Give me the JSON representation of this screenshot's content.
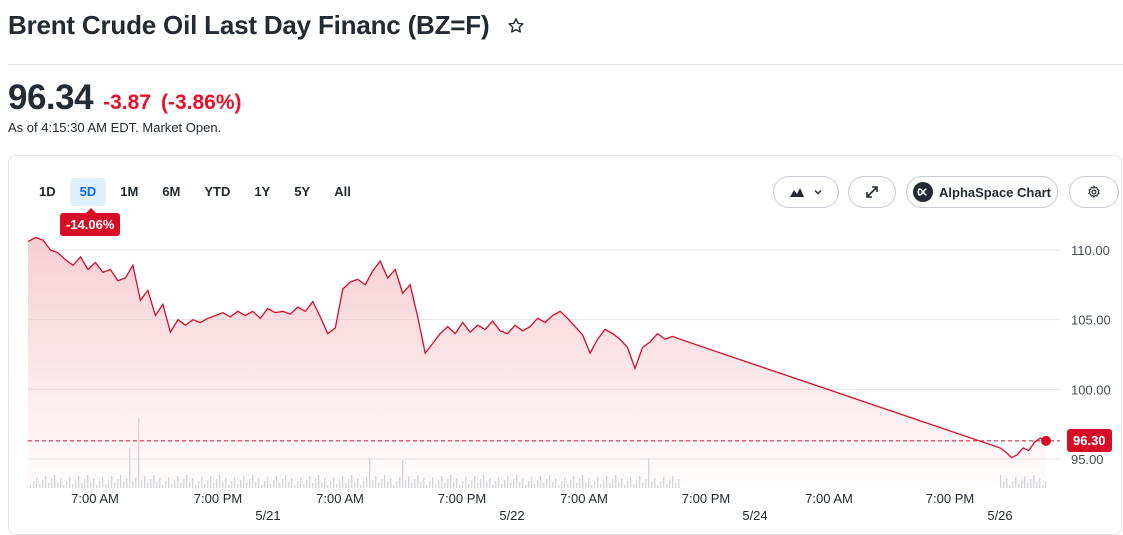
{
  "header": {
    "title": "Brent Crude Oil Last Day Financ (BZ=F)",
    "price": "96.34",
    "change": "-3.87",
    "change_pct": "(-3.86%)",
    "as_of": "As of 4:15:30 AM EDT. Market Open."
  },
  "toolbar": {
    "ranges": [
      "1D",
      "5D",
      "1M",
      "6M",
      "YTD",
      "1Y",
      "5Y",
      "All"
    ],
    "active_range": "5D",
    "period_change": "-14.06%",
    "alpha_label": "AlphaSpace Chart"
  },
  "colors": {
    "line": "#d80c26",
    "fill_top": "#f6c9ce",
    "negative": "#eb0f29",
    "active_range_bg": "#e0f0ff",
    "active_range_text": "#0f69ff"
  },
  "chart_data": {
    "type": "area",
    "ylim": [
      94.0,
      111.0
    ],
    "y_ticks": [
      "110.00",
      "105.00",
      "100.00",
      "95.00"
    ],
    "x_tick_labels": [
      "7:00 AM",
      "7:00 PM",
      "7:00 AM",
      "7:00 PM",
      "7:00 AM",
      "7:00 PM",
      "7:00 AM",
      "7:00 PM"
    ],
    "date_labels": [
      "5/21",
      "5/22",
      "5/24",
      "5/26"
    ],
    "previous_close": 96.3,
    "last_price_label": "96.30",
    "series": [
      {
        "values": [
          110.6,
          110.9,
          110.7,
          110.0,
          109.8,
          109.3,
          108.9,
          109.5,
          108.6,
          109.1,
          108.4,
          108.6,
          107.8,
          108.0,
          108.9,
          106.4,
          107.1,
          105.3,
          106.1,
          104.1,
          105.0,
          104.6,
          105.0,
          104.8,
          105.1,
          105.3,
          105.5,
          105.2,
          105.6,
          105.3,
          105.6,
          105.1,
          105.8,
          105.5,
          105.6,
          105.4,
          105.9,
          105.6,
          106.3,
          105.2,
          104.0,
          104.4,
          107.2,
          107.7,
          107.9,
          107.5,
          108.5,
          109.2,
          108.0,
          108.6,
          106.9,
          107.5,
          105.2,
          102.6,
          103.3,
          104.0,
          104.5,
          104.0,
          104.8,
          104.1,
          104.6,
          104.3,
          104.9,
          104.2,
          104.0,
          104.6,
          104.2,
          104.5,
          105.1,
          104.8,
          105.3,
          105.6,
          105.1,
          104.5,
          103.9,
          102.6,
          103.6,
          104.3,
          104.0,
          103.6,
          103.0,
          101.5,
          103.0,
          103.4,
          104.0,
          103.6,
          103.8,
          103.6,
          95.8,
          95.5,
          95.1,
          95.3,
          95.8,
          95.6,
          96.2,
          96.5,
          96.3
        ]
      }
    ]
  }
}
